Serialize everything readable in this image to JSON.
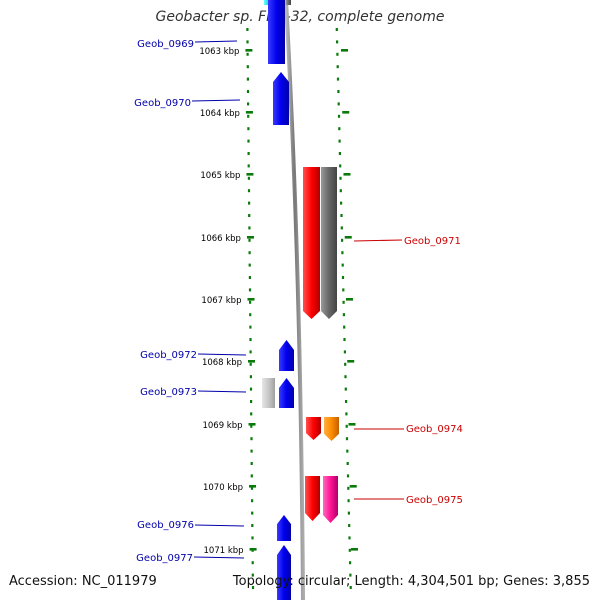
{
  "title": "Geobacter sp. FRC-32, complete genome",
  "accession": "Accession: NC_011979",
  "topology": "Topology: circular; Length: 4,304,501 bp; Genes: 3,855",
  "colors": {
    "forward_gene": "#0000ee",
    "reverse_gene": "#ee0000",
    "ruler": "#0a7a0a",
    "backbone": "#7f7f7f",
    "label_forward": "#0000aa",
    "label_reverse": "#cc0000"
  },
  "ruler_labels": [
    "1063 kbp",
    "1064 kbp",
    "1065 kbp",
    "1066 kbp",
    "1067 kbp",
    "1068 kbp",
    "1069 kbp",
    "1070 kbp",
    "1071 kbp"
  ],
  "genes": [
    {
      "name": "Geob_0969",
      "strand": "forward"
    },
    {
      "name": "Geob_0970",
      "strand": "forward"
    },
    {
      "name": "Geob_0971",
      "strand": "reverse"
    },
    {
      "name": "Geob_0972",
      "strand": "forward"
    },
    {
      "name": "Geob_0973",
      "strand": "forward"
    },
    {
      "name": "Geob_0974",
      "strand": "reverse"
    },
    {
      "name": "Geob_0975",
      "strand": "reverse"
    },
    {
      "name": "Geob_0976",
      "strand": "forward"
    },
    {
      "name": "Geob_0977",
      "strand": "forward"
    }
  ]
}
